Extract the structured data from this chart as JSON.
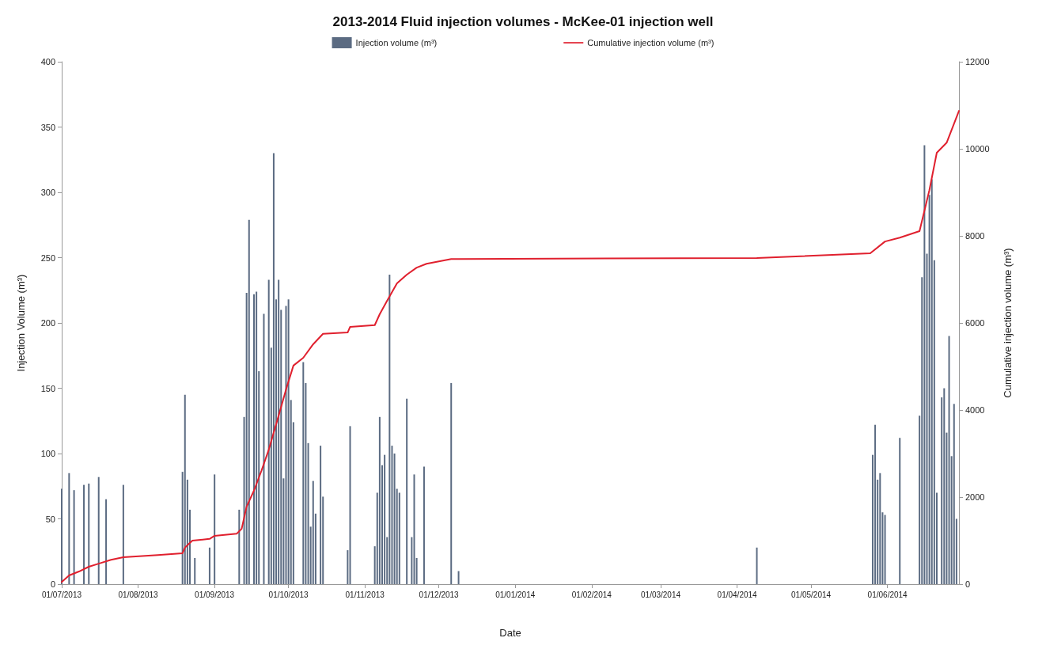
{
  "chart_data": {
    "type": "bar",
    "title": "2013-2014 Fluid injection volumes - McKee-01 injection well",
    "xlabel": "Date",
    "ylabel": "Injection Volume (m³)",
    "y2label": "Cumulative injection volume (m³)",
    "xlim": [
      "2013-07-01",
      "2014-06-30"
    ],
    "xticks": [
      {
        "value": "2013-07-01",
        "label": "01/07/2013"
      },
      {
        "value": "2013-08-01",
        "label": "01/08/2013"
      },
      {
        "value": "2013-09-01",
        "label": "01/09/2013"
      },
      {
        "value": "2013-10-01",
        "label": "01/10/2013"
      },
      {
        "value": "2013-11-01",
        "label": "01/11/2013"
      },
      {
        "value": "2013-12-01",
        "label": "01/12/2013"
      },
      {
        "value": "2014-01-01",
        "label": "01/01/2014"
      },
      {
        "value": "2014-02-01",
        "label": "01/02/2014"
      },
      {
        "value": "2014-03-01",
        "label": "01/03/2014"
      },
      {
        "value": "2014-04-01",
        "label": "01/04/2014"
      },
      {
        "value": "2014-05-01",
        "label": "01/05/2014"
      },
      {
        "value": "2014-06-01",
        "label": "01/06/2014"
      }
    ],
    "ylim": [
      0,
      400
    ],
    "yticks": [
      0,
      50,
      100,
      150,
      200,
      250,
      300,
      350,
      400
    ],
    "y2lim": [
      0,
      12000
    ],
    "y2ticks": [
      0,
      2000,
      4000,
      6000,
      8000,
      10000,
      12000
    ],
    "legend": "top",
    "marker": "none",
    "series": [
      {
        "name": "Injection volume (m³)",
        "color": "#5b6b82",
        "x": [
          "2013-07-01",
          "2013-07-04",
          "2013-07-06",
          "2013-07-10",
          "2013-07-12",
          "2013-07-16",
          "2013-07-19",
          "2013-07-26",
          "2013-08-19",
          "2013-08-20",
          "2013-08-21",
          "2013-08-22",
          "2013-08-24",
          "2013-08-30",
          "2013-09-01",
          "2013-09-11",
          "2013-09-13",
          "2013-09-14",
          "2013-09-15",
          "2013-09-17",
          "2013-09-18",
          "2013-09-19",
          "2013-09-21",
          "2013-09-23",
          "2013-09-24",
          "2013-09-25",
          "2013-09-26",
          "2013-09-27",
          "2013-09-28",
          "2013-09-29",
          "2013-09-30",
          "2013-10-01",
          "2013-10-02",
          "2013-10-03",
          "2013-10-07",
          "2013-10-08",
          "2013-10-09",
          "2013-10-10",
          "2013-10-11",
          "2013-10-12",
          "2013-10-14",
          "2013-10-15",
          "2013-10-25",
          "2013-10-26",
          "2013-11-05",
          "2013-11-06",
          "2013-11-07",
          "2013-11-08",
          "2013-11-09",
          "2013-11-10",
          "2013-11-11",
          "2013-11-12",
          "2013-11-13",
          "2013-11-14",
          "2013-11-15",
          "2013-11-18",
          "2013-11-20",
          "2013-11-21",
          "2013-11-22",
          "2013-11-25",
          "2013-12-06",
          "2013-12-09",
          "2014-04-09",
          "2014-05-26",
          "2014-05-27",
          "2014-05-28",
          "2014-05-29",
          "2014-05-30",
          "2014-05-31",
          "2014-06-06",
          "2014-06-14",
          "2014-06-15",
          "2014-06-16",
          "2014-06-17",
          "2014-06-18",
          "2014-06-19",
          "2014-06-20",
          "2014-06-21",
          "2014-06-23",
          "2014-06-24",
          "2014-06-25",
          "2014-06-26",
          "2014-06-27",
          "2014-06-28",
          "2014-06-29"
        ],
        "values": [
          73,
          85,
          72,
          76,
          77,
          82,
          65,
          76,
          86,
          145,
          80,
          57,
          20,
          28,
          84,
          57,
          128,
          223,
          279,
          222,
          224,
          163,
          207,
          233,
          181,
          330,
          218,
          233,
          210,
          81,
          213,
          218,
          141,
          124,
          170,
          154,
          108,
          44,
          79,
          54,
          106,
          67,
          26,
          121,
          29,
          70,
          128,
          91,
          99,
          36,
          237,
          106,
          100,
          73,
          70,
          142,
          36,
          84,
          20,
          90,
          154,
          10,
          28,
          99,
          122,
          80,
          85,
          55,
          53,
          112,
          129,
          235,
          336,
          253,
          298,
          310,
          248,
          70,
          143,
          150,
          116,
          190,
          98,
          138,
          50
        ]
      },
      {
        "name": "Cumulative injection volume (m³)",
        "type": "line",
        "axis": "y2",
        "color": "#e0202e",
        "x": [
          "2013-07-01",
          "2013-07-04",
          "2013-07-08",
          "2013-07-12",
          "2013-07-16",
          "2013-07-21",
          "2013-07-26",
          "2013-08-09",
          "2013-08-19",
          "2013-08-20",
          "2013-08-23",
          "2013-08-30",
          "2013-09-01",
          "2013-09-10",
          "2013-09-12",
          "2013-09-14",
          "2013-09-17",
          "2013-09-20",
          "2013-09-23",
          "2013-09-27",
          "2013-09-30",
          "2013-10-03",
          "2013-10-07",
          "2013-10-11",
          "2013-10-15",
          "2013-10-25",
          "2013-10-26",
          "2013-11-05",
          "2013-11-07",
          "2013-11-10",
          "2013-11-14",
          "2013-11-18",
          "2013-11-22",
          "2013-11-26",
          "2013-12-06",
          "2013-12-09",
          "2014-04-09",
          "2014-05-25",
          "2014-05-31",
          "2014-06-06",
          "2014-06-14",
          "2014-06-18",
          "2014-06-21",
          "2014-06-25",
          "2014-06-30"
        ],
        "values": [
          50,
          200,
          290,
          400,
          470,
          560,
          620,
          670,
          710,
          840,
          1000,
          1040,
          1110,
          1160,
          1270,
          1780,
          2150,
          2600,
          3090,
          3870,
          4470,
          5020,
          5200,
          5510,
          5750,
          5780,
          5910,
          5950,
          6200,
          6510,
          6910,
          7110,
          7270,
          7360,
          7470,
          7470,
          7490,
          7600,
          7870,
          7960,
          8110,
          9050,
          9910,
          10140,
          10870
        ]
      }
    ]
  }
}
